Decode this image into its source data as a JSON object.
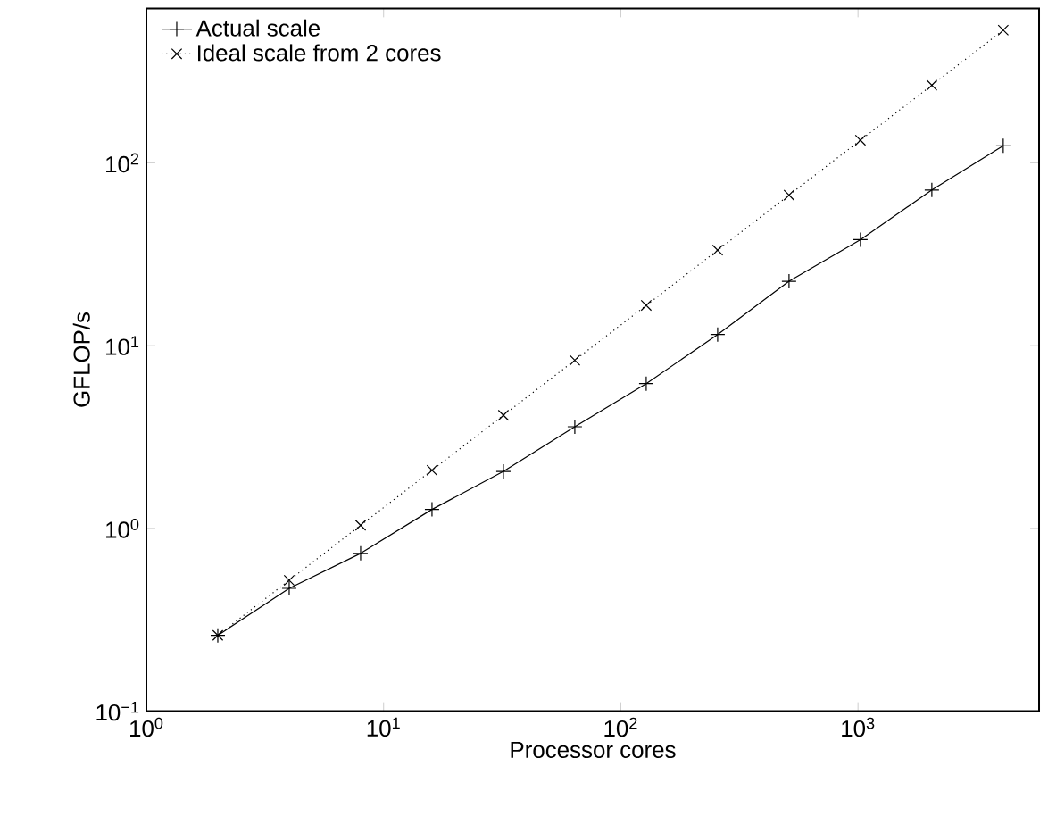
{
  "chart_data": {
    "type": "line",
    "xlabel": "Processor cores",
    "ylabel": "GFLOP/s",
    "log": "xy",
    "legend": "top left",
    "grid": false,
    "x": [
      2,
      4,
      8,
      16,
      32,
      64,
      128,
      256,
      512,
      1024,
      2048,
      4096
    ],
    "xlim": [
      1,
      5800
    ],
    "ylim": [
      0.1,
      700
    ],
    "xticks": [
      {
        "value": 1,
        "label": "10$^{0}$"
      },
      {
        "value": 10,
        "label": "10$^{1}$"
      },
      {
        "value": 100,
        "label": "10$^{2}$"
      },
      {
        "value": 1000,
        "label": "10$^{3}$"
      }
    ],
    "yticks": [
      {
        "value": 0.1,
        "label": "10$^{−1}$"
      },
      {
        "value": 1,
        "label": "10$^{0}$"
      },
      {
        "value": 10,
        "label": "10$^{1}$"
      },
      {
        "value": 100,
        "label": "10$^{2}$"
      }
    ],
    "series": [
      {
        "name": "Actual scale",
        "color": "#000000",
        "marker": "plus",
        "line_style": "solid",
        "values": [
          0.26,
          0.47,
          0.73,
          1.27,
          2.05,
          3.6,
          6.2,
          11.5,
          22.5,
          38,
          71,
          124
        ]
      },
      {
        "name": "Ideal scale from 2 cores",
        "color": "#000000",
        "marker": "cross",
        "line_style": "dotted",
        "values": [
          0.26,
          0.52,
          1.04,
          2.08,
          4.16,
          8.32,
          16.6,
          33.3,
          66.6,
          133,
          266,
          532
        ]
      }
    ]
  }
}
